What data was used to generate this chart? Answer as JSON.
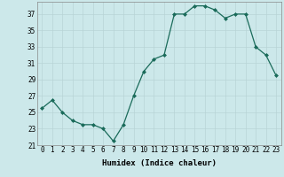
{
  "x": [
    0,
    1,
    2,
    3,
    4,
    5,
    6,
    7,
    8,
    9,
    10,
    11,
    12,
    13,
    14,
    15,
    16,
    17,
    18,
    19,
    20,
    21,
    22,
    23
  ],
  "y": [
    25.5,
    26.5,
    25.0,
    24.0,
    23.5,
    23.5,
    23.0,
    21.5,
    23.5,
    27.0,
    30.0,
    31.5,
    32.0,
    37.0,
    37.0,
    38.0,
    38.0,
    37.5,
    36.5,
    37.0,
    37.0,
    33.0,
    32.0,
    29.5
  ],
  "xlabel": "Humidex (Indice chaleur)",
  "ylabel": "",
  "xlim": [
    -0.5,
    23.5
  ],
  "ylim": [
    21,
    38.5
  ],
  "yticks": [
    21,
    23,
    25,
    27,
    29,
    31,
    33,
    35,
    37
  ],
  "xticks": [
    0,
    1,
    2,
    3,
    4,
    5,
    6,
    7,
    8,
    9,
    10,
    11,
    12,
    13,
    14,
    15,
    16,
    17,
    18,
    19,
    20,
    21,
    22,
    23
  ],
  "line_color": "#1a6b5a",
  "marker_color": "#1a6b5a",
  "bg_color": "#cce8ea",
  "grid_color": "#b8d4d6",
  "xlabel_fontsize": 6.5,
  "tick_fontsize": 5.5
}
